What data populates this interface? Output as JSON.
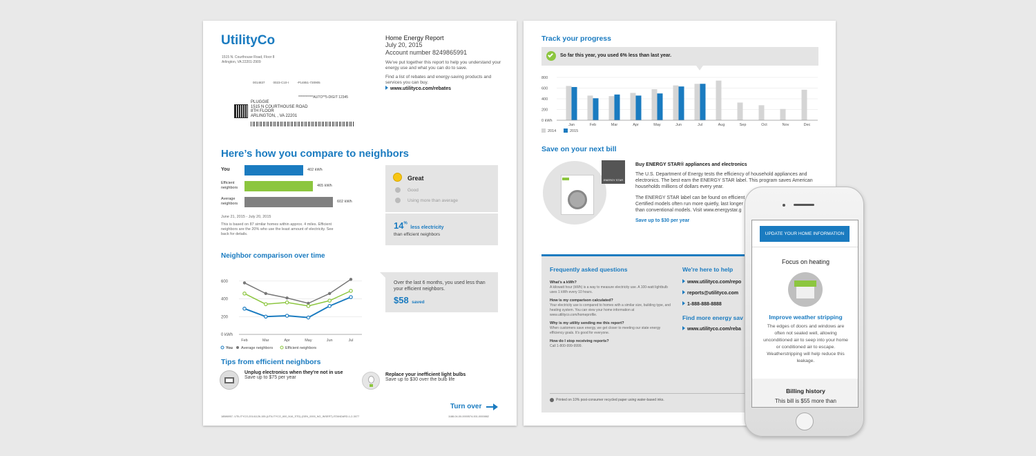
{
  "page1": {
    "logo": "UtilityCo",
    "sender_address": [
      "1515 N. Courthouse Road, Floor 8",
      "Arlington, VA 22201-2909"
    ],
    "barcode_line1": [
      "0014837",
      "0023-C10-I",
      "-P14851-730905"
    ],
    "barcode_line2": "***********AUTO**5-DIGIT 12345",
    "recipient": [
      "PLUGGIE",
      "1515 N COURTHOUSE ROAD",
      "8TH FLOOR",
      "ARLINGTON, , VA 22201"
    ],
    "report_title": "Home Energy Report",
    "report_date": "July 20, 2015",
    "account": "Account number 8249865991",
    "intro": "We've put together this report to help you understand your energy use and what you can do to save.",
    "rebates_text": "Find a list of rebates and energy-saving products and services you can buy.",
    "rebates_link": "www.utilityco.com/rebates",
    "compare_title": "Here’s how you compare to neighbors",
    "compare_rows": [
      {
        "label": "You",
        "value": "402 kWh",
        "kwh": 402,
        "color": "#1a7bc0"
      },
      {
        "label": "Efficient\nneighbors",
        "value": "465 kWh",
        "kwh": 465,
        "color": "#8cc63f"
      },
      {
        "label": "Average\nneighbors",
        "value": "602 kWh",
        "kwh": 602,
        "color": "#808080"
      }
    ],
    "compare_period": "June 21, 2015 - July 20, 2015",
    "compare_note": "This is based on 87 similar homes within approx. 4 miles. Efficient neighbors are the 20% who use the least amount of electricity. See back for details.",
    "rating_great": "Great",
    "rating_good": "Good",
    "rating_more": "Using more than average",
    "pct": "14",
    "pct_symbol": "%",
    "pct_label": "less electricity",
    "pct_sub": "than efficient neighbors",
    "time_title": "Neighbor comparison over time",
    "time_summary": "Over the last 6 months, you used less than your efficient neighbors.",
    "saved_amount": "$58",
    "saved_label": "saved",
    "tips_title": "Tips from efficient neighbors",
    "tip1_title": "Unplug electronics when they're not in use",
    "tip1_sub": "Save up to $75 per year",
    "tip2_title": "Replace your inefficient light bulbs",
    "tip2_sub": "Save up to $30 over the bulb life",
    "turn_over": "Turn over",
    "footer_left": "18586957- UTILITYCO-20141126-155-(UTILITYCO_600_N16_STD)-(GEN_0000_NO_INSERT)-STANDARD-1-2-3077",
    "footer_right": "1188-04-00-0000574-001-0000882"
  },
  "chart_data": [
    {
      "type": "line",
      "title": "Neighbor comparison over time",
      "categories": [
        "Feb",
        "Mar",
        "Apr",
        "May",
        "Jun",
        "Jul"
      ],
      "y_ticks": [
        "600",
        "400",
        "200",
        "0 kWh"
      ],
      "ylim": [
        0,
        700
      ],
      "series": [
        {
          "name": "You",
          "color": "#1a7bc0",
          "values": [
            290,
            200,
            210,
            190,
            320,
            420
          ]
        },
        {
          "name": "Average neighbors",
          "color": "#777777",
          "values": [
            580,
            460,
            410,
            350,
            460,
            620
          ]
        },
        {
          "name": "Efficient neighbors",
          "color": "#8cc63f",
          "values": [
            460,
            340,
            360,
            320,
            380,
            490
          ]
        }
      ]
    },
    {
      "type": "bar",
      "title": "Track your progress",
      "categories": [
        "Jan",
        "Feb",
        "Mar",
        "Apr",
        "May",
        "Jun",
        "Jul",
        "Aug",
        "Sep",
        "Oct",
        "Nov",
        "Dec"
      ],
      "y_ticks": [
        "800",
        "600",
        "400",
        "200",
        "0 kWh"
      ],
      "ylim": [
        0,
        800
      ],
      "series": [
        {
          "name": "2014",
          "color": "#d5d5d5",
          "values": [
            640,
            460,
            450,
            510,
            580,
            650,
            680,
            740,
            330,
            280,
            210,
            570
          ]
        },
        {
          "name": "2015",
          "color": "#1a7bc0",
          "values": [
            620,
            410,
            480,
            460,
            500,
            630,
            680,
            null,
            null,
            null,
            null,
            null
          ]
        }
      ]
    }
  ],
  "page2": {
    "track_title": "Track your progress",
    "progress_banner": "So far this year, you used 6% less than last year.",
    "save_title": "Save on your next bill",
    "energy_star_badge": "ENERGY STAR",
    "star_title": "Buy ENERGY STAR® appliances and electronics",
    "star_p1": "The U.S. Department of Energy tests the efficiency of household appliances and electronics. The best earn the ENERGY STAR label. This program saves American households millions of dollars every year.",
    "star_p2": "The ENERGY STAR label can be found on efficient Certified models often run more quietly, last longer than conventional models. Visit www.energystar.g",
    "star_save": "Save up to $30 per year",
    "faq_title": "Frequently asked questions",
    "faq": [
      {
        "q": "What's a kWh?",
        "a": "A kilowatt hour (kWh) is a way to measure electricity use. A 100-watt lightbulb uses 1 kWh every 10 hours."
      },
      {
        "q": "How is my comparison calculated?",
        "a": "Your electricity use is compared to homes with a similar size, building type, and heating system. You can view your home information at www.utilityco.com/homeprofile."
      },
      {
        "q": "Why is my utility sending me this report?",
        "a": "When customers save energy, we get closer to meeting our state energy efficiency goals. It's good for everyone."
      },
      {
        "q": "How do I stop receiving reports?",
        "a": "Call 1-800-999-9999."
      }
    ],
    "help_title": "We're here to help",
    "help_links": [
      "www.utilityco.com/repo",
      "reports@utilityco.com",
      "1-888-888-8888"
    ],
    "find_title": "Find more energy sav",
    "find_link": "www.utilityco.com/reba",
    "printed_note": "Printed on 10% post-consumer recycled paper using water-based inks."
  },
  "phone": {
    "button": "UPDATE YOUR HOME INFORMATION",
    "focus": "Focus on heating",
    "tip_title": "Improve weather stripping",
    "tip_body": "The edges of doors and windows are often not sealed well, allowing unconditioned air to seep into your home or conditioned air to escape. Weatherstripping will help reduce this leakage.",
    "billing": "Billing history",
    "billing_sub": "This bill is $55 more than"
  }
}
